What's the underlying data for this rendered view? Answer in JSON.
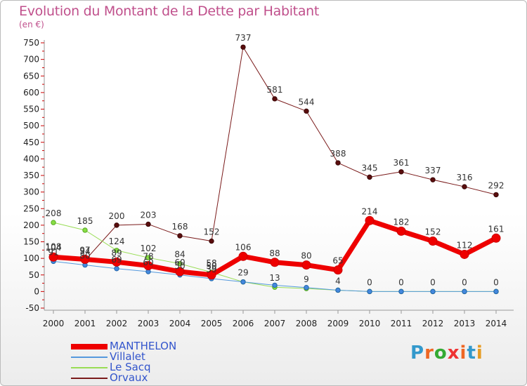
{
  "title": "Evolution du Montant de la Dette par Habitant",
  "subtitle": "(en €)",
  "logo": {
    "text": "Proxiti",
    "letter_colors": [
      "#3399cc",
      "#ee6622",
      "#33aa33",
      "#ee3333",
      "#ee6622",
      "#3399cc",
      "#e69c24"
    ]
  },
  "chart_data": {
    "type": "line",
    "x": [
      "2000",
      "2001",
      "2002",
      "2003",
      "2004",
      "2005",
      "2006",
      "2007",
      "2008",
      "2009",
      "2010",
      "2011",
      "2012",
      "2013",
      "2014"
    ],
    "ylim": [
      -50,
      750
    ],
    "yticks": [
      750,
      700,
      650,
      600,
      550,
      500,
      450,
      400,
      350,
      300,
      250,
      200,
      150,
      100,
      50,
      0,
      -50
    ],
    "xlabel": "",
    "ylabel": "",
    "grid": false,
    "legend_position": "bottom-left",
    "series": [
      {
        "name": "Orvaux",
        "color": "#7a1a1a",
        "values": [
          108,
          94,
          200,
          203,
          168,
          152,
          737,
          581,
          544,
          388,
          345,
          361,
          337,
          316,
          292
        ]
      },
      {
        "name": "Le Sacq",
        "color": "#99dd55",
        "values": [
          208,
          185,
          124,
          102,
          84,
          58,
          29,
          13,
          9,
          4,
          0,
          0,
          0,
          0,
          0
        ]
      },
      {
        "name": "Villalet",
        "color": "#5599dd",
        "values": [
          91,
          80,
          69,
          60,
          50,
          39,
          29,
          19,
          12,
          4,
          0,
          0,
          0,
          0,
          0
        ]
      },
      {
        "name": "MANTHELON",
        "color": "#ee0000",
        "values": [
          104,
          97,
          89,
          78,
          60,
          50,
          106,
          88,
          80,
          65,
          214,
          182,
          152,
          112,
          161
        ]
      }
    ],
    "data_labels": [
      {
        "series": "Orvaux",
        "labels": [
          "108",
          "94",
          "200",
          "203",
          "168",
          "152",
          "737",
          "581",
          "544",
          "388",
          "345",
          "361",
          "337",
          "316",
          "292"
        ]
      },
      {
        "series": "Le Sacq",
        "labels": [
          "208",
          "185",
          "124",
          "102",
          "84",
          "58",
          "29",
          "13",
          "9",
          "4",
          "0",
          "0",
          "0",
          "0",
          "0"
        ]
      },
      {
        "series": "Villalet",
        "labels": [
          "91",
          "80",
          "69",
          "60",
          "50",
          "39",
          "",
          "",
          "",
          "",
          "",
          "",
          "",
          "",
          ""
        ]
      },
      {
        "series": "MANTHELON",
        "labels": [
          "104",
          "97",
          "89",
          "78",
          "60",
          "50",
          "106",
          "88",
          "80",
          "65",
          "214",
          "182",
          "152",
          "112",
          "161"
        ]
      }
    ],
    "legend": [
      "MANTHELON",
      "Villalet",
      "Le Sacq",
      "Orvaux"
    ]
  }
}
